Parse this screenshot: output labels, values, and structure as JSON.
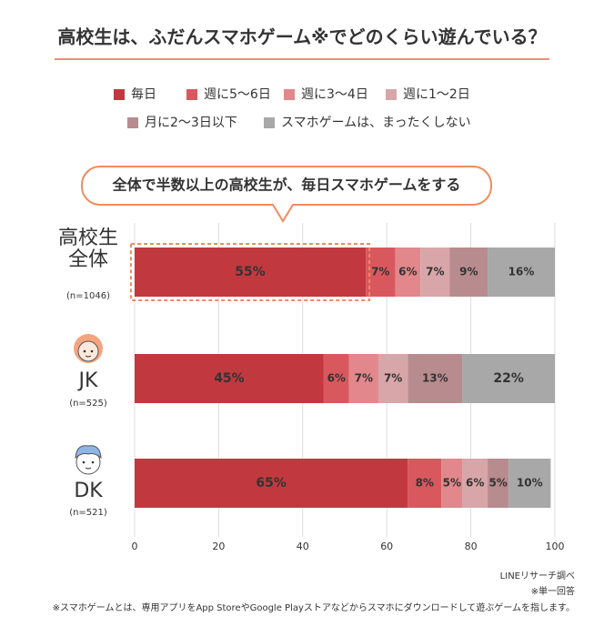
{
  "chart_data": {
    "type": "stacked_bar_horizontal",
    "title": "高校生は、ふだんスマホゲーム※でどのくらい遊んでいる？",
    "annotation": "全体で半数以上の高校生が、毎日スマホゲームをする",
    "categories": [
      "高校生全体",
      "JK",
      "DK"
    ],
    "sample_sizes": [
      "(n=1046)",
      "(n=525)",
      "(n=521)"
    ],
    "series": [
      {
        "name": "毎日",
        "color": "#c1393f",
        "values": [
          55,
          45,
          65
        ],
        "value_labels": [
          "55%",
          "45%",
          "65%"
        ]
      },
      {
        "name": "週に5～6日",
        "color": "#d9585e",
        "values": [
          7,
          6,
          8
        ],
        "value_labels": [
          "7%",
          "6%",
          "8%"
        ]
      },
      {
        "name": "週に3～4日",
        "color": "#e2878b",
        "values": [
          6,
          7,
          5
        ],
        "value_labels": [
          "6%",
          "7%",
          "5%"
        ]
      },
      {
        "name": "週に1～2日",
        "color": "#d8a6a9",
        "values": [
          7,
          7,
          6
        ],
        "value_labels": [
          "7%",
          "7%",
          "6%"
        ]
      },
      {
        "name": "月に2～3日以下",
        "color": "#b88b8f",
        "values": [
          9,
          13,
          5
        ],
        "value_labels": [
          "9%",
          "13%",
          "5%"
        ]
      },
      {
        "name": "スマホゲームは、まったくしない",
        "color": "#a8a8a8",
        "values": [
          16,
          22,
          10
        ],
        "value_labels": [
          "16%",
          "22%",
          "10%"
        ]
      }
    ],
    "xlim": [
      0,
      100
    ],
    "xticks": [
      0,
      20,
      40,
      60,
      80,
      100
    ],
    "grid": true,
    "source": "LINEリサーチ調べ",
    "note": "※単一回答",
    "footnote": "※スマホゲームとは、専用アプリをApp StoreやGoogle Playストアなどからスマホにダウンロードして遊ぶゲームを指します。"
  }
}
